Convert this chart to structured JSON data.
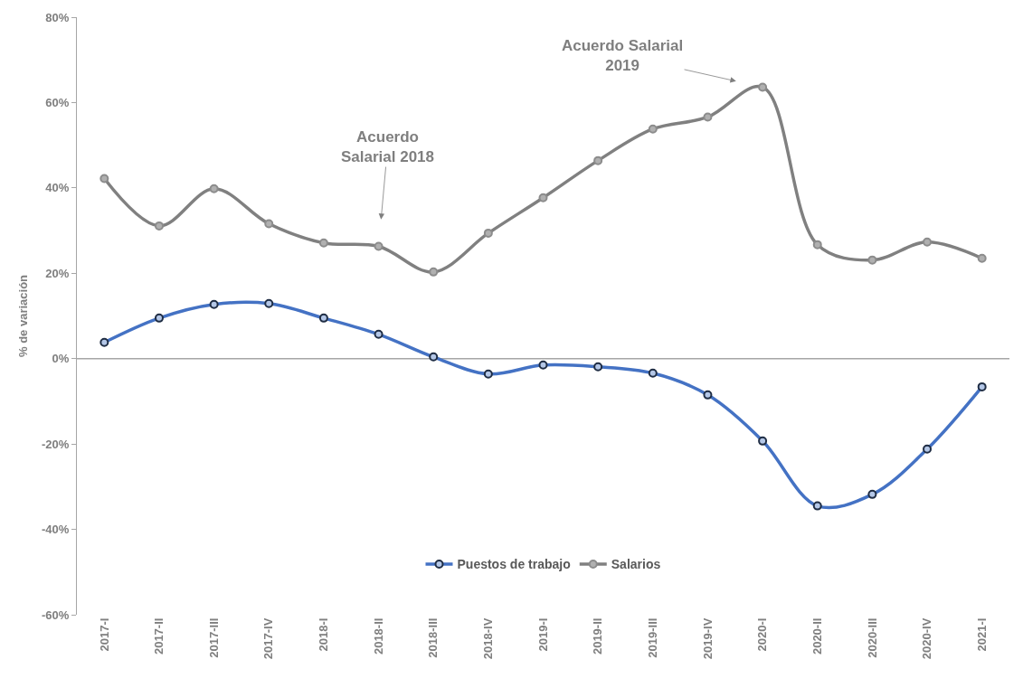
{
  "chart_data": {
    "type": "line",
    "ylabel": "% de variación",
    "categories": [
      "2017-I",
      "2017-II",
      "2017-III",
      "2017-IV",
      "2018-I",
      "2018-II",
      "2018-III",
      "2018-IV",
      "2019-I",
      "2019-II",
      "2019-III",
      "2019-IV",
      "2020-I",
      "2020-II",
      "2020-III",
      "2020-IV",
      "2021-I"
    ],
    "series": [
      {
        "name": "Puestos de trabajo",
        "color": "#4472c4",
        "values": [
          3.8,
          9.5,
          12.7,
          12.9,
          9.5,
          5.7,
          0.4,
          -3.6,
          -1.5,
          -1.9,
          -3.4,
          -8.5,
          -19.3,
          -34.5,
          -31.8,
          -21.2,
          -6.6
        ]
      },
      {
        "name": "Salarios",
        "color": "#808080",
        "values": [
          42.2,
          31.1,
          39.8,
          31.6,
          27.1,
          26.3,
          20.3,
          29.4,
          37.7,
          46.4,
          53.8,
          56.6,
          63.6,
          26.7,
          23.1,
          27.3,
          23.5
        ]
      }
    ],
    "annotations": [
      {
        "text": "Acuerdo\nSalarial 2018",
        "x": "2018-II",
        "y": 26.3
      },
      {
        "text": "Acuerdo Salarial\n2019",
        "x": "2020-I",
        "y": 63.6
      }
    ],
    "ylim": [
      -60,
      80
    ],
    "yticks": [
      {
        "value": -60,
        "label": "-60%"
      },
      {
        "value": -40,
        "label": "-40%"
      },
      {
        "value": -20,
        "label": "-20%"
      },
      {
        "value": 0,
        "label": "0%"
      },
      {
        "value": 20,
        "label": "20%"
      },
      {
        "value": 40,
        "label": "40%"
      },
      {
        "value": 60,
        "label": "60%"
      },
      {
        "value": 80,
        "label": "80%"
      }
    ],
    "ref_lines": [
      {
        "axis": "y",
        "value": 0,
        "color": "#a6a6a6"
      }
    ],
    "legend": "bottom",
    "marker": "circle",
    "line_style": "solid"
  }
}
